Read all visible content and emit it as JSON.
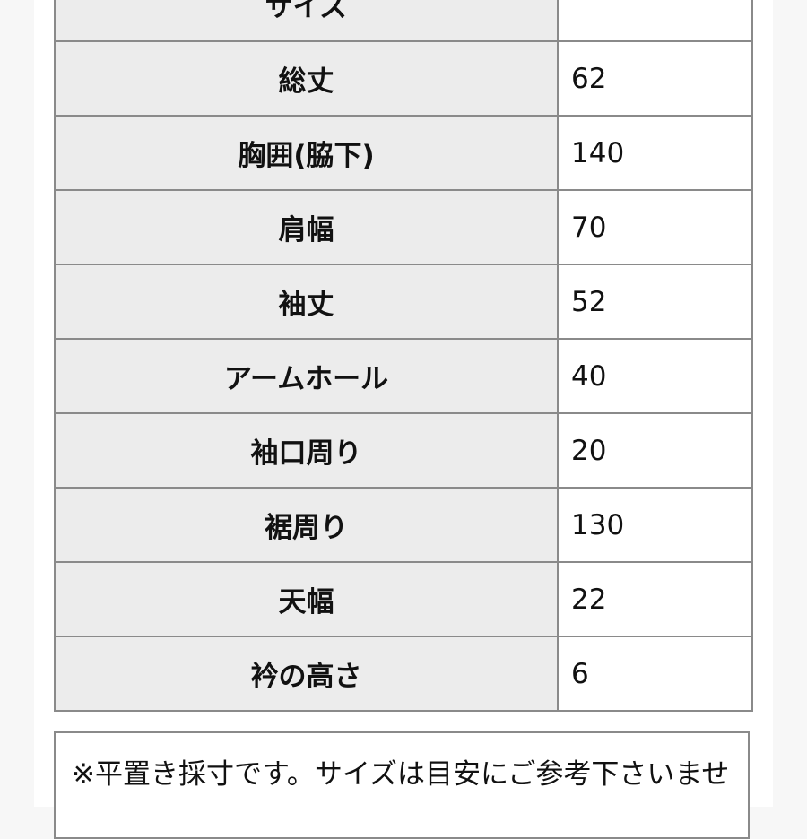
{
  "rows": [
    {
      "label": "サイズ",
      "value": ""
    },
    {
      "label": "総丈",
      "value": "62"
    },
    {
      "label": "胸囲(脇下)",
      "value": "140"
    },
    {
      "label": "肩幅",
      "value": "70"
    },
    {
      "label": "袖丈",
      "value": "52"
    },
    {
      "label": "アームホール",
      "value": "40"
    },
    {
      "label": "袖口周り",
      "value": "20"
    },
    {
      "label": "裾周り",
      "value": "130"
    },
    {
      "label": "天幅",
      "value": "22"
    },
    {
      "label": "衿の高さ",
      "value": "6"
    }
  ],
  "note": "※平置き採寸です。サイズは目安にご参考下さいませ"
}
